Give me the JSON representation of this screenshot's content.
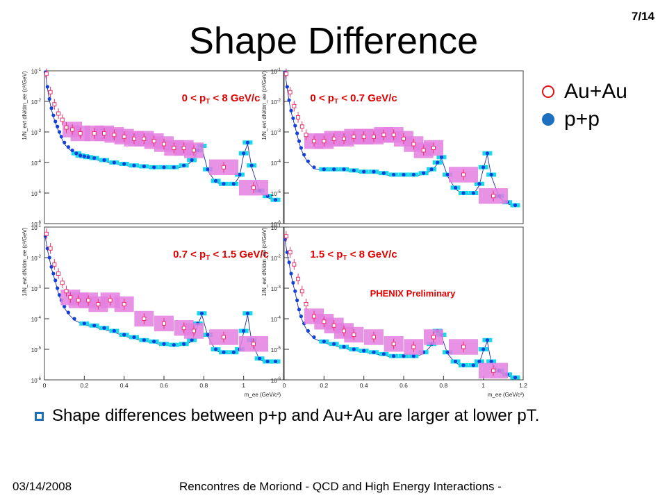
{
  "slide": {
    "title": "Shape Difference",
    "page_number": "7/14",
    "bullet": "Shape differences between p+p and Au+Au are larger at lower pT.",
    "footer_date": "03/14/2008",
    "footer_conference": "Rencontres de Moriond - QCD and High Energy Interactions -",
    "legend": [
      {
        "label": "Au+Au",
        "marker": "open-circle",
        "color": "#dd1111"
      },
      {
        "label": "p+p",
        "marker": "filled-circle",
        "color": "#1d6fc0"
      }
    ],
    "colors": {
      "auau": "#e8336a",
      "auau_band": "#e47fe0",
      "pp": "#1240d8",
      "pp_band": "#19d6ea",
      "panel_label": "#e00000",
      "cocktail": "#1a2aa0"
    }
  },
  "chart_data": {
    "type": "scatter",
    "xlabel": "m_ee (GeV/c²)",
    "ylabel": "1/N_evt dN/dm_ee (c²/GeV)",
    "log_y": true,
    "xlim": [
      0,
      1.2
    ],
    "ylim": [
      1e-06,
      0.1
    ],
    "x_ticks": [
      "0",
      "0.2",
      "0.4",
      "0.6",
      "0.8",
      "1",
      "1.2"
    ],
    "x_ticks_cut": [
      "0",
      "0.2",
      "0.4",
      "0.6",
      "0.8",
      "1"
    ],
    "y_ticks": [
      {
        "base": "10",
        "exp": "-1"
      },
      {
        "base": "10",
        "exp": "-2"
      },
      {
        "base": "10",
        "exp": "-3"
      },
      {
        "base": "10",
        "exp": "-4"
      },
      {
        "base": "10",
        "exp": "-5"
      },
      {
        "base": "10",
        "exp": "-6"
      }
    ],
    "annotation": "PHENIX Preliminary",
    "panels": [
      {
        "range": {
          "pre": "0 < p",
          "post": " < 8 GeV/c",
          "sub": "T"
        },
        "auau_x": [
          0.01,
          0.03,
          0.05,
          0.07,
          0.09,
          0.11,
          0.14,
          0.18,
          0.25,
          0.3,
          0.35,
          0.4,
          0.45,
          0.5,
          0.55,
          0.6,
          0.65,
          0.7,
          0.75,
          0.9,
          1.05
        ],
        "auau_y": [
          0.08,
          0.02,
          0.008,
          0.004,
          0.0025,
          0.0014,
          0.0012,
          0.0009,
          0.0009,
          0.0009,
          0.0008,
          0.0007,
          0.0006,
          0.0006,
          0.0005,
          0.0004,
          0.0003,
          0.0003,
          0.00025,
          7e-05,
          1.5e-05
        ],
        "pp_x": [
          0.005,
          0.015,
          0.025,
          0.035,
          0.045,
          0.055,
          0.065,
          0.075,
          0.085,
          0.1,
          0.12,
          0.14,
          0.16,
          0.18,
          0.2,
          0.22,
          0.25,
          0.3,
          0.35,
          0.4,
          0.45,
          0.5,
          0.55,
          0.6,
          0.65,
          0.7,
          0.74,
          0.77,
          0.79,
          0.82,
          0.86,
          0.9,
          0.95,
          0.98,
          1.0,
          1.02,
          1.04,
          1.08,
          1.12,
          1.16
        ],
        "pp_y": [
          0.09,
          0.03,
          0.012,
          0.006,
          0.0035,
          0.0022,
          0.0015,
          0.001,
          0.0007,
          0.00045,
          0.00032,
          0.00025,
          0.0002,
          0.00017,
          0.00016,
          0.00015,
          0.00014,
          0.00012,
          0.0001,
          9e-05,
          8e-05,
          7.5e-05,
          7e-05,
          7e-05,
          7e-05,
          8e-05,
          0.00012,
          0.00025,
          0.00035,
          6e-05,
          2.5e-05,
          2e-05,
          2e-05,
          4e-05,
          0.0002,
          0.00045,
          8e-05,
          1.2e-05,
          8e-06,
          6e-06
        ]
      },
      {
        "range": {
          "pre": "0 < p",
          "post": " < 0.7 GeV/c",
          "sub": "T"
        },
        "auau_x": [
          0.01,
          0.03,
          0.05,
          0.07,
          0.09,
          0.11,
          0.15,
          0.2,
          0.25,
          0.3,
          0.35,
          0.4,
          0.45,
          0.5,
          0.55,
          0.6,
          0.65,
          0.7,
          0.75,
          0.9,
          1.05
        ],
        "auau_y": [
          0.08,
          0.02,
          0.007,
          0.003,
          0.0015,
          0.0008,
          0.0005,
          0.0005,
          0.0006,
          0.0006,
          0.0007,
          0.0007,
          0.0007,
          0.0008,
          0.0008,
          0.0006,
          0.0004,
          0.00025,
          0.0003,
          4e-05,
          8e-06
        ],
        "pp_x": [
          0.005,
          0.015,
          0.025,
          0.035,
          0.045,
          0.055,
          0.065,
          0.075,
          0.085,
          0.1,
          0.12,
          0.15,
          0.2,
          0.25,
          0.3,
          0.35,
          0.4,
          0.45,
          0.5,
          0.55,
          0.6,
          0.65,
          0.7,
          0.74,
          0.77,
          0.79,
          0.82,
          0.86,
          0.9,
          0.95,
          0.98,
          1.0,
          1.02,
          1.04,
          1.08,
          1.12,
          1.16
        ],
        "pp_y": [
          0.09,
          0.03,
          0.011,
          0.005,
          0.0028,
          0.0016,
          0.0009,
          0.0005,
          0.0003,
          0.00018,
          0.00011,
          7e-05,
          6e-05,
          6e-05,
          6e-05,
          5.5e-05,
          5e-05,
          5e-05,
          4.5e-05,
          4e-05,
          4e-05,
          4e-05,
          4.5e-05,
          6e-05,
          0.0001,
          0.00015,
          4e-05,
          1.5e-05,
          1e-05,
          1e-05,
          2e-05,
          7e-05,
          0.0002,
          4e-05,
          8e-06,
          5e-06,
          4e-06
        ]
      },
      {
        "range": {
          "pre": "0.7 < p",
          "post": " < 1.5 GeV/c",
          "sub": "T"
        },
        "auau_x": [
          0.01,
          0.03,
          0.05,
          0.07,
          0.09,
          0.11,
          0.13,
          0.17,
          0.22,
          0.27,
          0.33,
          0.4,
          0.5,
          0.6,
          0.7,
          0.75,
          0.9,
          1.05
        ],
        "auau_y": [
          0.06,
          0.02,
          0.006,
          0.003,
          0.0015,
          0.0008,
          0.0005,
          0.0004,
          0.0004,
          0.0003,
          0.0004,
          0.0003,
          0.0001,
          7e-05,
          5e-05,
          4e-05,
          2.5e-05,
          1.5e-05
        ],
        "pp_x": [
          0.005,
          0.015,
          0.025,
          0.035,
          0.045,
          0.055,
          0.065,
          0.075,
          0.085,
          0.1,
          0.12,
          0.15,
          0.2,
          0.25,
          0.3,
          0.35,
          0.4,
          0.45,
          0.5,
          0.55,
          0.6,
          0.65,
          0.7,
          0.74,
          0.77,
          0.79,
          0.82,
          0.86,
          0.9,
          0.95,
          0.98,
          1.0,
          1.02,
          1.04,
          1.08,
          1.12,
          1.16
        ],
        "pp_y": [
          0.05,
          0.02,
          0.01,
          0.005,
          0.003,
          0.0018,
          0.001,
          0.0006,
          0.0004,
          0.00025,
          0.00016,
          0.0001,
          7e-05,
          6e-05,
          5e-05,
          4e-05,
          3e-05,
          2.5e-05,
          2e-05,
          1.8e-05,
          1.5e-05,
          1.4e-05,
          1.5e-05,
          2e-05,
          7e-05,
          0.00015,
          3e-05,
          1e-05,
          8e-06,
          8e-06,
          1e-05,
          4e-05,
          0.00015,
          2e-05,
          5e-06,
          4e-06,
          4e-06
        ]
      },
      {
        "range": {
          "pre": "1.5 < p",
          "post": " < 8 GeV/c",
          "sub": "T"
        },
        "auau_x": [
          0.01,
          0.03,
          0.05,
          0.07,
          0.09,
          0.11,
          0.15,
          0.2,
          0.25,
          0.3,
          0.35,
          0.45,
          0.55,
          0.65,
          0.75,
          0.9,
          1.05
        ],
        "auau_y": [
          0.05,
          0.015,
          0.006,
          0.002,
          0.0008,
          0.0003,
          0.00012,
          8e-05,
          6e-05,
          4e-05,
          3e-05,
          2.5e-05,
          1.5e-05,
          1.2e-05,
          2.5e-05,
          1.2e-05,
          2e-06
        ],
        "pp_x": [
          0.005,
          0.015,
          0.025,
          0.035,
          0.045,
          0.055,
          0.065,
          0.075,
          0.085,
          0.1,
          0.12,
          0.15,
          0.2,
          0.25,
          0.3,
          0.35,
          0.4,
          0.45,
          0.5,
          0.55,
          0.6,
          0.65,
          0.7,
          0.74,
          0.77,
          0.79,
          0.82,
          0.86,
          0.9,
          0.95,
          0.98,
          1.0,
          1.02,
          1.04,
          1.08,
          1.12,
          1.16
        ],
        "pp_y": [
          0.04,
          0.015,
          0.007,
          0.003,
          0.0015,
          0.0008,
          0.0004,
          0.0002,
          0.00012,
          7e-05,
          4e-05,
          2.5e-05,
          1.8e-05,
          1.5e-05,
          1.2e-05,
          1e-05,
          9e-06,
          8e-06,
          7e-06,
          6e-06,
          6e-06,
          6e-06,
          8e-06,
          1.5e-05,
          4e-05,
          3e-05,
          8e-06,
          4e-06,
          3e-06,
          3e-06,
          4e-06,
          1e-05,
          2e-05,
          4e-06,
          2e-06,
          1.5e-06,
          1.2e-06
        ]
      }
    ]
  }
}
